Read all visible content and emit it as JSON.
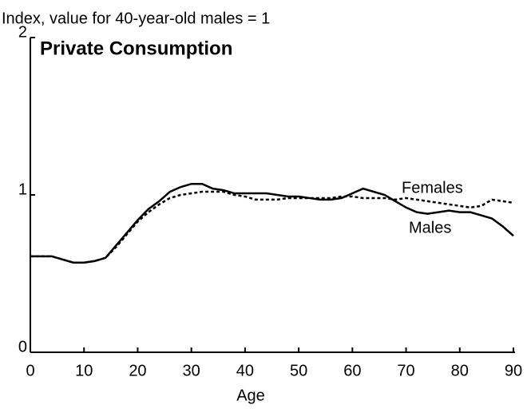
{
  "chart_data": {
    "type": "line",
    "title": "Private Consumption",
    "subtitle": "Index, value for 40-year-old males = 1",
    "xlabel": "Age",
    "x": [
      0,
      2,
      4,
      6,
      8,
      10,
      12,
      14,
      16,
      18,
      20,
      22,
      24,
      26,
      28,
      30,
      32,
      34,
      36,
      38,
      40,
      42,
      44,
      46,
      48,
      50,
      52,
      54,
      56,
      58,
      60,
      62,
      64,
      66,
      68,
      70,
      72,
      74,
      76,
      78,
      80,
      82,
      84,
      86,
      88,
      90
    ],
    "series": [
      {
        "name": "Males",
        "color": "#000000",
        "style": "solid",
        "values": [
          0.61,
          0.61,
          0.61,
          0.59,
          0.57,
          0.57,
          0.58,
          0.6,
          0.68,
          0.76,
          0.84,
          0.91,
          0.96,
          1.02,
          1.05,
          1.07,
          1.07,
          1.04,
          1.03,
          1.01,
          1.01,
          1.01,
          1.01,
          1.0,
          0.99,
          0.99,
          0.98,
          0.97,
          0.97,
          0.98,
          1.01,
          1.04,
          1.02,
          1.0,
          0.96,
          0.92,
          0.89,
          0.88,
          0.89,
          0.9,
          0.89,
          0.89,
          0.87,
          0.85,
          0.8,
          0.74
        ]
      },
      {
        "name": "Females",
        "color": "#000000",
        "style": "dashed",
        "values": [
          0.61,
          0.61,
          0.61,
          0.59,
          0.57,
          0.57,
          0.58,
          0.6,
          0.67,
          0.75,
          0.83,
          0.89,
          0.94,
          0.98,
          1.0,
          1.01,
          1.02,
          1.02,
          1.02,
          1.0,
          0.99,
          0.97,
          0.97,
          0.97,
          0.98,
          0.98,
          0.98,
          0.98,
          0.98,
          0.99,
          0.99,
          0.98,
          0.98,
          0.98,
          0.97,
          0.98,
          0.97,
          0.96,
          0.95,
          0.94,
          0.93,
          0.92,
          0.93,
          0.97,
          0.96,
          0.95
        ]
      }
    ],
    "xlim": [
      0,
      90
    ],
    "xticks": [
      0,
      10,
      20,
      30,
      40,
      50,
      60,
      70,
      80,
      90
    ],
    "ylim": [
      0,
      2
    ],
    "yticks": [
      0,
      1,
      2
    ]
  }
}
